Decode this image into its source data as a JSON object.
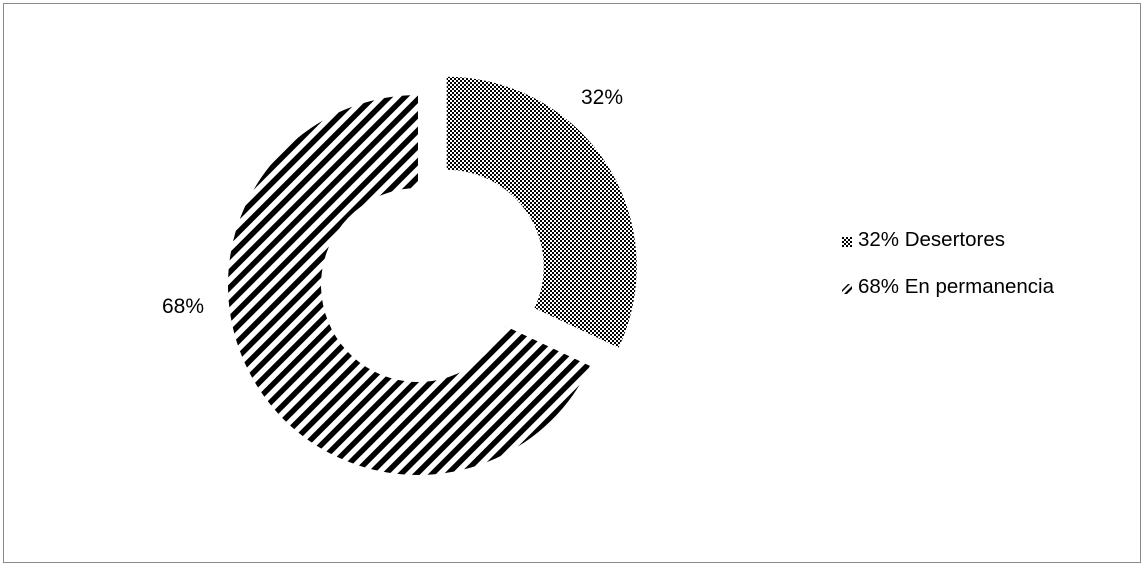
{
  "chart_data": {
    "type": "pie",
    "style": "exploded-donut",
    "slices": [
      {
        "label": "32% Desertores",
        "value": 32,
        "data_label": "32%",
        "pattern": "checker"
      },
      {
        "label": "68% En permanencia",
        "value": 68,
        "data_label": "68%",
        "pattern": "diagonal-stripes"
      }
    ],
    "legend_position": "right"
  }
}
